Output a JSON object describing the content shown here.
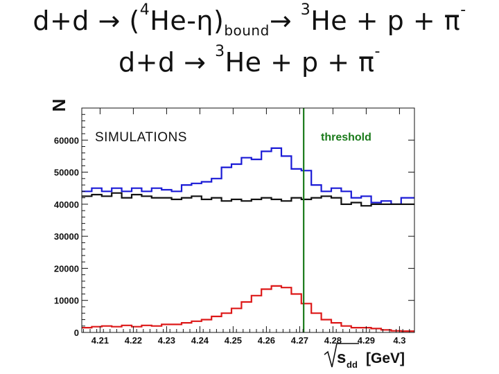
{
  "slide": {
    "title_line1": {
      "pre": "d+d → (",
      "sup1": "4",
      "mid": "He-η)",
      "sub": "bound",
      "arrow": "→ ",
      "sup2": "3",
      "post": "He + p + π",
      "sup3": "-"
    },
    "title_line2": {
      "pre": "d+d → ",
      "sup1": "3",
      "post": "He + p + π",
      "sup2": "-"
    }
  },
  "chart_data": {
    "type": "line",
    "step": true,
    "ylabel": "N",
    "xlabel_sqrt": "s",
    "xlabel_sub": "dd",
    "xlabel_unit": "[GeV]",
    "annotation": "SIMULATIONS",
    "threshold_label": "threshold",
    "threshold_x": 4.2712,
    "xlim": [
      4.2045,
      4.3045
    ],
    "ylim": [
      0,
      70000
    ],
    "xticks": [
      "4.21",
      "4.22",
      "4.23",
      "4.24",
      "4.25",
      "4.26",
      "4.27",
      "4.28",
      "4.29",
      "4.3"
    ],
    "yticks": [
      "0",
      "10000",
      "20000",
      "30000",
      "40000",
      "50000",
      "60000"
    ],
    "grid": false,
    "bin_edges": [
      4.2045,
      4.2075,
      4.2105,
      4.2135,
      4.2165,
      4.2195,
      4.2225,
      4.2255,
      4.2285,
      4.2315,
      4.2345,
      4.2375,
      4.2405,
      4.2435,
      4.2465,
      4.2495,
      4.2525,
      4.2555,
      4.2585,
      4.2615,
      4.2645,
      4.2675,
      4.2705,
      4.2735,
      4.2765,
      4.2795,
      4.2825,
      4.2855,
      4.2885,
      4.2915,
      4.2945,
      4.2975,
      4.3005,
      4.3045
    ],
    "series": [
      {
        "color": "#1a1ad6",
        "values": [
          44000,
          45000,
          44000,
          45000,
          44000,
          45000,
          44000,
          45000,
          44500,
          44000,
          46000,
          46500,
          47000,
          48000,
          51500,
          52500,
          54500,
          54000,
          56500,
          57500,
          55000,
          51000,
          50500,
          46000,
          44000,
          45000,
          44000,
          42000,
          42500,
          40500,
          41000,
          40000,
          42000
        ]
      },
      {
        "color": "#111111",
        "values": [
          42500,
          43000,
          42500,
          43500,
          42000,
          43000,
          42500,
          42000,
          42000,
          41500,
          42000,
          42500,
          41500,
          42000,
          41000,
          41500,
          41000,
          41500,
          42000,
          41500,
          41000,
          42000,
          41500,
          42000,
          42500,
          42000,
          40000,
          40500,
          39500,
          40000,
          40000,
          40000,
          40000
        ]
      },
      {
        "color": "#dd1818",
        "values": [
          1500,
          1800,
          2000,
          1800,
          2200,
          1800,
          2200,
          2000,
          2500,
          2500,
          3000,
          3500,
          4000,
          5000,
          6000,
          7500,
          9500,
          11500,
          13500,
          14500,
          14000,
          12000,
          9000,
          6000,
          4000,
          3000,
          2000,
          1500,
          1500,
          1200,
          800,
          500,
          400
        ]
      }
    ]
  }
}
